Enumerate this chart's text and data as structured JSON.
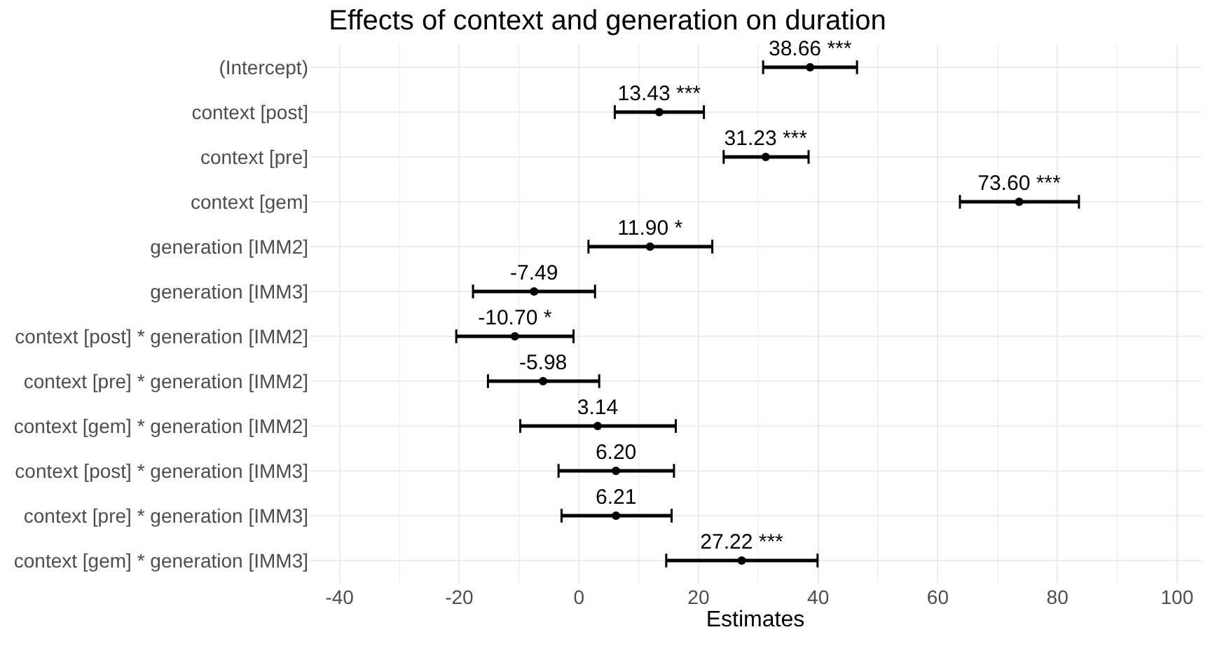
{
  "chart_data": {
    "type": "scatter",
    "orientation": "horizontal",
    "title": "Effects of context and generation on duration",
    "xlabel": "Estimates",
    "categories": [
      "(Intercept)",
      "context [post]",
      "context [pre]",
      "context [gem]",
      "generation [IMM2]",
      "generation [IMM3]",
      "context [post] * generation [IMM2]",
      "context [pre] * generation [IMM2]",
      "context [gem] * generation [IMM2]",
      "context [post] * generation [IMM3]",
      "context [pre] * generation [IMM3]",
      "context [gem] * generation [IMM3]"
    ],
    "values": [
      38.66,
      13.43,
      31.23,
      73.6,
      11.9,
      -7.49,
      -10.7,
      -5.98,
      3.14,
      6.2,
      6.21,
      27.22
    ],
    "errors": [
      [
        30.8,
        46.5
      ],
      [
        6.0,
        20.9
      ],
      [
        24.2,
        38.4
      ],
      [
        63.7,
        83.6
      ],
      [
        1.6,
        22.3
      ],
      [
        -17.7,
        2.7
      ],
      [
        -20.5,
        -0.9
      ],
      [
        -15.2,
        3.4
      ],
      [
        -9.8,
        16.2
      ],
      [
        -3.4,
        15.9
      ],
      [
        -2.9,
        15.5
      ],
      [
        14.6,
        39.9
      ]
    ],
    "value_labels": [
      "38.66 ***",
      "13.43 ***",
      "31.23 ***",
      "73.60 ***",
      "11.90 *",
      "-7.49",
      "-10.70 *",
      "-5.98",
      "3.14",
      "6.20",
      "6.21",
      "27.22 ***"
    ],
    "color": "#000000",
    "marker": "circle",
    "xlim": [
      -45,
      104
    ],
    "xticks": [
      -40,
      -20,
      0,
      20,
      40,
      60,
      80,
      100
    ],
    "grid": true
  }
}
